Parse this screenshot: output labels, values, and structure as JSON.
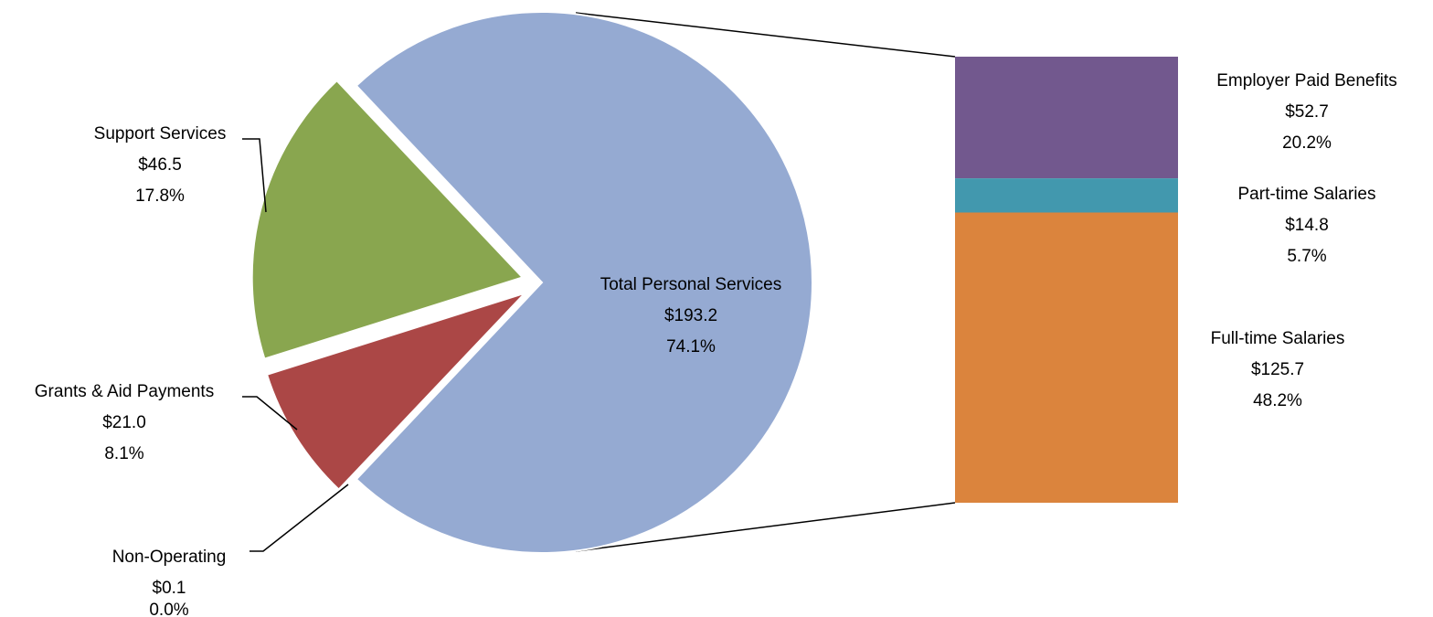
{
  "chart_data": {
    "type": "pie",
    "title": "",
    "pie": {
      "slices": [
        {
          "name": "Total Personal Services",
          "value": "$193.2",
          "percent": "74.1%",
          "amount": 193.2,
          "color": "#95aad2"
        },
        {
          "name": "Non-Operating",
          "value": "$0.1",
          "percent": "0.0%",
          "amount": 0.1,
          "color": "#4f81bd"
        },
        {
          "name": "Grants & Aid Payments",
          "value": "$21.0",
          "percent": "8.1%",
          "amount": 21.0,
          "color": "#ab4746"
        },
        {
          "name": "Support Services",
          "value": "$46.5",
          "percent": "17.8%",
          "amount": 46.5,
          "color": "#89a64f"
        }
      ]
    },
    "breakdown": {
      "parent": "Total Personal Services",
      "segments": [
        {
          "name": "Employer Paid Benefits",
          "value": "$52.7",
          "percent": "20.2%",
          "amount": 52.7,
          "color": "#72588e"
        },
        {
          "name": "Part-time Salaries",
          "value": "$14.8",
          "percent": "5.7%",
          "amount": 14.8,
          "color": "#4298ae"
        },
        {
          "name": "Full-time Salaries",
          "value": "$125.7",
          "percent": "48.2%",
          "amount": 125.7,
          "color": "#db843d"
        }
      ]
    }
  }
}
